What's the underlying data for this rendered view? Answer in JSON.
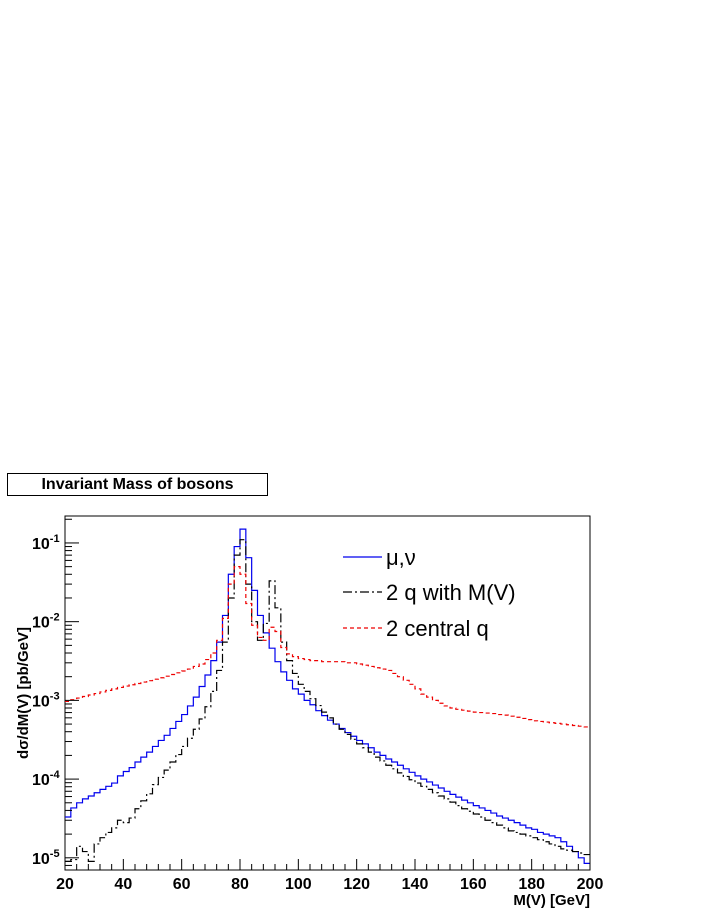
{
  "chart_data": {
    "type": "line",
    "title": "Invariant Mass of bosons",
    "xlabel": "M(V) [GeV]",
    "ylabel": "dσ/dM(V) [pb/GeV]",
    "xlim": [
      20,
      200
    ],
    "ylim": [
      7e-06,
      0.22
    ],
    "log_y": true,
    "grid": false,
    "legend_position": "top-right",
    "x_ticks": [
      20,
      40,
      60,
      80,
      100,
      120,
      140,
      160,
      180,
      200
    ],
    "y_ticks": [
      {
        "value": 0.1,
        "label": "10",
        "exp": "-1"
      },
      {
        "value": 0.01,
        "label": "10",
        "exp": "-2"
      },
      {
        "value": 0.001,
        "label": "10",
        "exp": "-3"
      },
      {
        "value": 0.0001,
        "label": "10",
        "exp": "-4"
      },
      {
        "value": 1e-05,
        "label": "10",
        "exp": "-5"
      }
    ],
    "bin_width": 2,
    "x_start": 20,
    "series": [
      {
        "name": "μ,ν",
        "color": "#0000ee",
        "dash": "",
        "values": [
          3.3e-05,
          4.3e-05,
          5e-05,
          5.6e-05,
          6.1e-05,
          6.7e-05,
          7.4e-05,
          8.1e-05,
          8.9e-05,
          0.00011,
          0.000125,
          0.00014,
          0.000165,
          0.00019,
          0.00022,
          0.00026,
          0.00031,
          0.00036,
          0.00044,
          0.00054,
          0.00066,
          0.00085,
          0.0011,
          0.0015,
          0.0021,
          0.0032,
          0.0055,
          0.012,
          0.04,
          0.09,
          0.15,
          0.065,
          0.025,
          0.012,
          0.0072,
          0.0046,
          0.0031,
          0.0023,
          0.0018,
          0.0014,
          0.0012,
          0.001,
          0.00088,
          0.00074,
          0.00064,
          0.00056,
          0.0005,
          0.00044,
          0.00039,
          0.00035,
          0.00031,
          0.00028,
          0.00025,
          0.00022,
          0.0002,
          0.00018,
          0.000165,
          0.00015,
          0.000135,
          0.000122,
          0.00011,
          0.0001,
          9.2e-05,
          8.4e-05,
          7.7e-05,
          7e-05,
          6.4e-05,
          5.9e-05,
          5.4e-05,
          5e-05,
          4.6e-05,
          4.3e-05,
          4e-05,
          3.7e-05,
          3.4e-05,
          3.2e-05,
          3e-05,
          2.8e-05,
          2.6e-05,
          2.4e-05,
          2.3e-05,
          2.1e-05,
          2e-05,
          1.9e-05,
          1.8e-05,
          1.6e-05,
          1.4e-05,
          1.2e-05,
          1e-05,
          8.5e-06
        ]
      },
      {
        "name": "2 q with M(V)",
        "color": "#000000",
        "dash": "9,3,2,3",
        "values": [
          9e-06,
          9.5e-06,
          1.4e-05,
          1.2e-05,
          9e-06,
          1.5e-05,
          1.8e-05,
          2.1e-05,
          2.4e-05,
          3e-05,
          2.8e-05,
          3.2e-05,
          4.2e-05,
          5.3e-05,
          6.5e-05,
          8.5e-05,
          0.000105,
          0.00013,
          0.000165,
          0.000205,
          0.00026,
          0.00033,
          0.00043,
          0.00058,
          0.00083,
          0.0013,
          0.0024,
          0.0055,
          0.02,
          0.07,
          0.11,
          0.03,
          0.01,
          0.0058,
          0.0095,
          0.033,
          0.015,
          0.0055,
          0.0032,
          0.0022,
          0.0016,
          0.0013,
          0.00105,
          0.00086,
          0.00071,
          0.0006,
          0.0005,
          0.00043,
          0.00037,
          0.00032,
          0.00028,
          0.00025,
          0.00022,
          0.00019,
          0.00017,
          0.00015,
          0.000135,
          0.00012,
          0.000108,
          9.8e-05,
          8.9e-05,
          8.1e-05,
          7.4e-05,
          6.7e-05,
          6.1e-05,
          5.6e-05,
          5.1e-05,
          4.6e-05,
          4.2e-05,
          3.9e-05,
          3.6e-05,
          3.3e-05,
          3e-05,
          2.8e-05,
          2.6e-05,
          2.4e-05,
          2.2e-05,
          2.1e-05,
          2e-05,
          1.9e-05,
          1.8e-05,
          1.7e-05,
          1.6e-05,
          1.5e-05,
          1.4e-05,
          1.3e-05,
          1.25e-05,
          1.2e-05,
          1.15e-05,
          1.1e-05
        ]
      },
      {
        "name": "2 central q",
        "color": "#ee0000",
        "dash": "4,3",
        "values": [
          0.00097,
          0.00102,
          0.00107,
          0.00112,
          0.00117,
          0.00122,
          0.00128,
          0.00134,
          0.0014,
          0.00146,
          0.00152,
          0.00158,
          0.00164,
          0.00171,
          0.00178,
          0.00186,
          0.00194,
          0.00203,
          0.00213,
          0.00224,
          0.00236,
          0.0025,
          0.0027,
          0.0029,
          0.0033,
          0.004,
          0.0058,
          0.011,
          0.03,
          0.05,
          0.04,
          0.017,
          0.009,
          0.0063,
          0.0058,
          0.0085,
          0.0075,
          0.0047,
          0.0039,
          0.0036,
          0.0034,
          0.0033,
          0.0032,
          0.0032,
          0.0031,
          0.0031,
          0.0031,
          0.0031,
          0.003,
          0.003,
          0.0029,
          0.0028,
          0.0027,
          0.0026,
          0.0025,
          0.0024,
          0.0022,
          0.002,
          0.0018,
          0.0016,
          0.0014,
          0.0012,
          0.0011,
          0.001,
          0.00092,
          0.00085,
          0.0008,
          0.00077,
          0.00075,
          0.00073,
          0.00071,
          0.0007,
          0.00069,
          0.00068,
          0.00066,
          0.00065,
          0.00063,
          0.00061,
          0.00059,
          0.00057,
          0.00055,
          0.00054,
          0.00053,
          0.00052,
          0.00051,
          0.0005,
          0.00049,
          0.00048,
          0.00047,
          0.00046
        ]
      }
    ]
  }
}
